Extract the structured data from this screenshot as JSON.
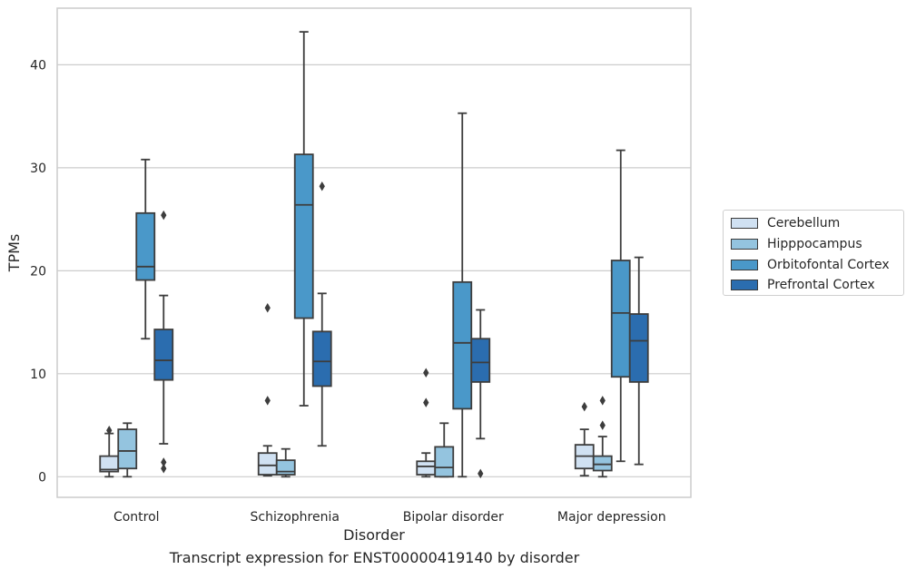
{
  "chart_data": {
    "type": "box",
    "xlabel": "Disorder",
    "ylabel": "TPMs",
    "caption": "Transcript expression for ENST00000419140 by disorder",
    "ylim": [
      -2,
      45.5
    ],
    "yticks": [
      0,
      10,
      20,
      30,
      40
    ],
    "grid": "horizontal",
    "legend_position": "right",
    "categories": [
      "Control",
      "Schizophrenia",
      "Bipolar disorder",
      "Major depression"
    ],
    "series": [
      {
        "name": "Cerebellum",
        "color": "#d0e1f2",
        "boxes": [
          {
            "whisker_low": 0.0,
            "q1": 0.5,
            "median": 0.7,
            "q3": 2.0,
            "whisker_high": 4.2,
            "outliers": [
              4.5
            ]
          },
          {
            "whisker_low": 0.1,
            "q1": 0.2,
            "median": 1.1,
            "q3": 2.3,
            "whisker_high": 3.0,
            "outliers": [
              7.4,
              16.4
            ]
          },
          {
            "whisker_low": 0.0,
            "q1": 0.2,
            "median": 1.0,
            "q3": 1.5,
            "whisker_high": 2.3,
            "outliers": [
              7.2,
              10.1
            ]
          },
          {
            "whisker_low": 0.1,
            "q1": 0.8,
            "median": 2.0,
            "q3": 3.1,
            "whisker_high": 4.6,
            "outliers": [
              6.8
            ]
          }
        ]
      },
      {
        "name": "Hipppocampus",
        "color": "#94c4df",
        "boxes": [
          {
            "whisker_low": 0.0,
            "q1": 0.8,
            "median": 2.5,
            "q3": 4.6,
            "whisker_high": 5.2,
            "outliers": []
          },
          {
            "whisker_low": 0.0,
            "q1": 0.2,
            "median": 0.5,
            "q3": 1.6,
            "whisker_high": 2.7,
            "outliers": []
          },
          {
            "whisker_low": 0.0,
            "q1": 0.0,
            "median": 0.9,
            "q3": 2.9,
            "whisker_high": 5.2,
            "outliers": []
          },
          {
            "whisker_low": 0.0,
            "q1": 0.6,
            "median": 1.2,
            "q3": 2.0,
            "whisker_high": 3.9,
            "outliers": [
              5.0,
              7.4
            ]
          }
        ]
      },
      {
        "name": "Orbitofontal Cortex",
        "color": "#4a98c9",
        "boxes": [
          {
            "whisker_low": 13.4,
            "q1": 19.1,
            "median": 20.4,
            "q3": 25.6,
            "whisker_high": 30.8,
            "outliers": []
          },
          {
            "whisker_low": 6.9,
            "q1": 15.4,
            "median": 26.4,
            "q3": 31.3,
            "whisker_high": 43.2,
            "outliers": []
          },
          {
            "whisker_low": 0.0,
            "q1": 6.6,
            "median": 13.0,
            "q3": 18.9,
            "whisker_high": 35.3,
            "outliers": []
          },
          {
            "whisker_low": 1.5,
            "q1": 9.7,
            "median": 15.9,
            "q3": 21.0,
            "whisker_high": 31.7,
            "outliers": []
          }
        ]
      },
      {
        "name": "Prefrontal Cortex",
        "color": "#2b6daf",
        "boxes": [
          {
            "whisker_low": 3.2,
            "q1": 9.4,
            "median": 11.3,
            "q3": 14.3,
            "whisker_high": 17.6,
            "outliers": [
              0.8,
              1.4,
              25.4
            ]
          },
          {
            "whisker_low": 3.0,
            "q1": 8.8,
            "median": 11.2,
            "q3": 14.1,
            "whisker_high": 17.8,
            "outliers": [
              28.2
            ]
          },
          {
            "whisker_low": 3.7,
            "q1": 9.2,
            "median": 11.1,
            "q3": 13.4,
            "whisker_high": 16.2,
            "outliers": [
              0.3
            ]
          },
          {
            "whisker_low": 1.2,
            "q1": 9.2,
            "median": 13.2,
            "q3": 15.8,
            "whisker_high": 21.3,
            "outliers": []
          }
        ]
      }
    ]
  }
}
